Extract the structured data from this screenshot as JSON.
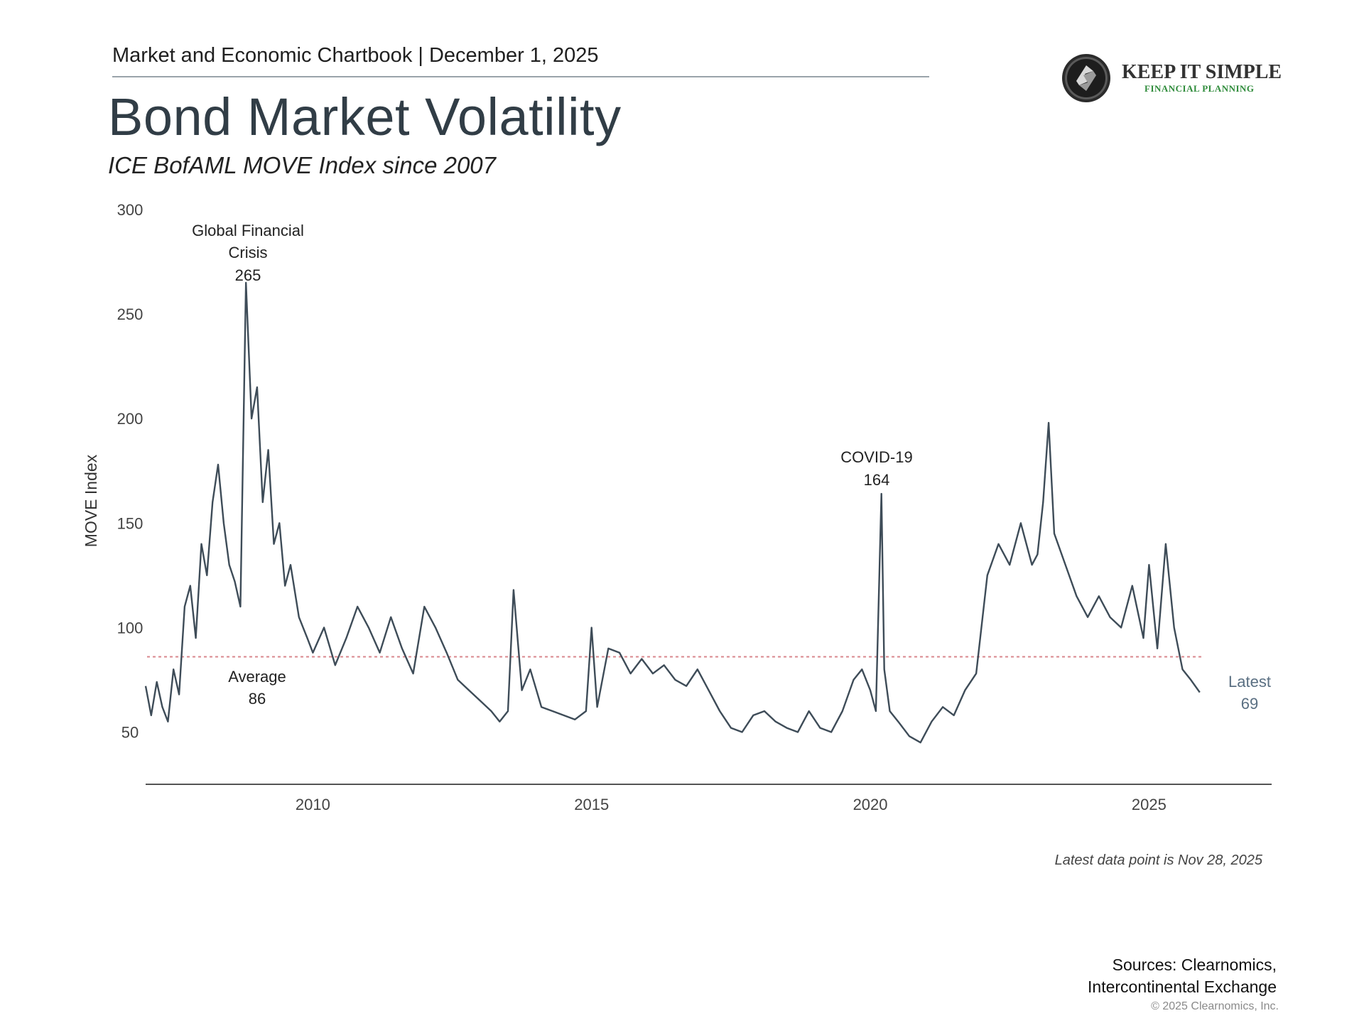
{
  "header": {
    "chartbook": "Market and Economic Chartbook | December 1, 2025",
    "title": "Bond Market Volatility",
    "subtitle": "ICE BofAML MOVE Index since 2007"
  },
  "logo": {
    "name": "KEEP IT SIMPLE",
    "tagline": "FINANCIAL PLANNING",
    "accent_color": "#2e8b3a"
  },
  "chart_data": {
    "type": "line",
    "ylabel": "MOVE Index",
    "xlabel": "",
    "yticks": [
      50,
      100,
      150,
      200,
      250,
      300
    ],
    "xticks": [
      2010,
      2015,
      2020,
      2025
    ],
    "ylim": [
      25,
      300
    ],
    "xlim": [
      2007.0,
      2027.2
    ],
    "grid": false,
    "line_color": "#3e4c58",
    "average_line_color": "#d9878c",
    "series": [
      {
        "x": [
          2007.0,
          2007.1,
          2007.2,
          2007.3,
          2007.4,
          2007.5,
          2007.6,
          2007.7,
          2007.8,
          2007.9,
          2008.0,
          2008.1,
          2008.2,
          2008.3,
          2008.4,
          2008.5,
          2008.6,
          2008.7,
          2008.8,
          2008.9,
          2009.0,
          2009.1,
          2009.2,
          2009.3,
          2009.4,
          2009.5,
          2009.6,
          2009.75,
          2009.9,
          2010.0,
          2010.2,
          2010.4,
          2010.6,
          2010.8,
          2011.0,
          2011.2,
          2011.4,
          2011.6,
          2011.8,
          2012.0,
          2012.2,
          2012.4,
          2012.6,
          2012.8,
          2013.0,
          2013.2,
          2013.35,
          2013.5,
          2013.6,
          2013.75,
          2013.9,
          2014.1,
          2014.3,
          2014.5,
          2014.7,
          2014.9,
          2015.0,
          2015.1,
          2015.3,
          2015.5,
          2015.7,
          2015.9,
          2016.1,
          2016.3,
          2016.5,
          2016.7,
          2016.9,
          2017.1,
          2017.3,
          2017.5,
          2017.7,
          2017.9,
          2018.1,
          2018.3,
          2018.5,
          2018.7,
          2018.9,
          2019.1,
          2019.3,
          2019.5,
          2019.7,
          2019.85,
          2020.0,
          2020.1,
          2020.2,
          2020.25,
          2020.35,
          2020.5,
          2020.7,
          2020.9,
          2021.1,
          2021.3,
          2021.5,
          2021.7,
          2021.9,
          2022.1,
          2022.3,
          2022.5,
          2022.7,
          2022.9,
          2023.0,
          2023.1,
          2023.2,
          2023.3,
          2023.5,
          2023.7,
          2023.9,
          2024.1,
          2024.3,
          2024.5,
          2024.7,
          2024.9,
          2025.0,
          2025.15,
          2025.3,
          2025.45,
          2025.6,
          2025.75,
          2025.91
        ],
        "values": [
          72,
          58,
          74,
          62,
          55,
          80,
          68,
          110,
          120,
          95,
          140,
          125,
          160,
          178,
          150,
          130,
          122,
          110,
          265,
          200,
          215,
          160,
          185,
          140,
          150,
          120,
          130,
          105,
          95,
          88,
          100,
          82,
          95,
          110,
          100,
          88,
          105,
          90,
          78,
          110,
          100,
          88,
          75,
          70,
          65,
          60,
          55,
          60,
          118,
          70,
          80,
          62,
          60,
          58,
          56,
          60,
          100,
          62,
          90,
          88,
          78,
          85,
          78,
          82,
          75,
          72,
          80,
          70,
          60,
          52,
          50,
          58,
          60,
          55,
          52,
          50,
          60,
          52,
          50,
          60,
          75,
          80,
          70,
          60,
          164,
          80,
          60,
          55,
          48,
          45,
          55,
          62,
          58,
          70,
          78,
          125,
          140,
          130,
          150,
          130,
          135,
          160,
          198,
          145,
          130,
          115,
          105,
          115,
          105,
          100,
          120,
          95,
          130,
          90,
          140,
          100,
          80,
          75,
          69
        ]
      }
    ],
    "average": {
      "value": 86,
      "label": "Average",
      "value_label": "86"
    },
    "annotations": [
      {
        "label": "Global Financial",
        "label2": "Crisis",
        "value": "265"
      },
      {
        "label": "COVID-19",
        "value": "164"
      },
      {
        "label": "Latest",
        "value": "69"
      }
    ]
  },
  "footer": {
    "note": "Latest data point is Nov 28, 2025",
    "sources_line1": "Sources: Clearnomics,",
    "sources_line2": "Intercontinental Exchange",
    "copyright": "© 2025 Clearnomics, Inc."
  }
}
